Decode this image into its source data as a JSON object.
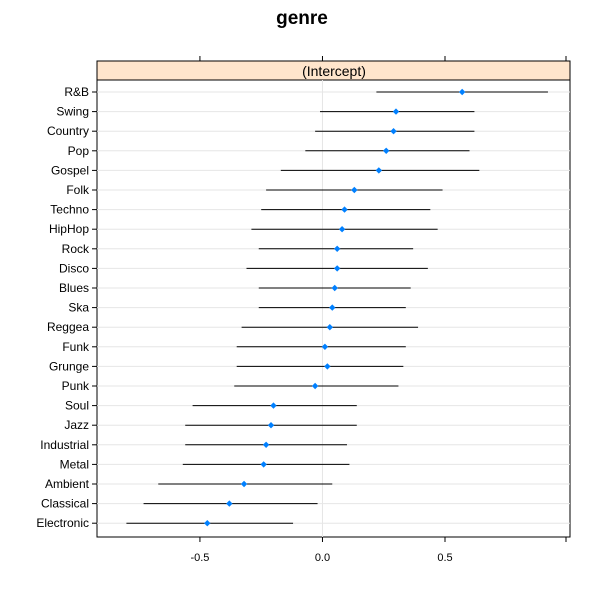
{
  "chart_data": {
    "type": "dotplot-errorbar",
    "title": "genre",
    "panel_label": "(Intercept)",
    "xlim": [
      -0.92,
      1.01
    ],
    "xticks": [
      -0.5,
      0.0,
      0.5
    ],
    "xtick_labels": [
      "-0.5",
      "0.0",
      "0.5"
    ],
    "grid": true,
    "colors": {
      "point": "#0080ff",
      "errorbar": "#000000",
      "strip": "#ffe5cc",
      "grid": "#e6e6e6"
    },
    "categories": [
      "R&B",
      "Swing",
      "Country",
      "Pop",
      "Gospel",
      "Folk",
      "Techno",
      "HipHop",
      "Rock",
      "Disco",
      "Blues",
      "Ska",
      "Reggea",
      "Funk",
      "Grunge",
      "Punk",
      "Soul",
      "Jazz",
      "Industrial",
      "Metal",
      "Ambient",
      "Classical",
      "Electronic"
    ],
    "values": [
      0.57,
      0.3,
      0.29,
      0.26,
      0.23,
      0.13,
      0.09,
      0.08,
      0.06,
      0.06,
      0.05,
      0.04,
      0.03,
      0.01,
      0.02,
      -0.03,
      -0.2,
      -0.21,
      -0.23,
      -0.24,
      -0.32,
      -0.38,
      -0.47
    ],
    "lower": [
      0.22,
      -0.01,
      -0.03,
      -0.07,
      -0.17,
      -0.23,
      -0.25,
      -0.29,
      -0.26,
      -0.31,
      -0.26,
      -0.26,
      -0.33,
      -0.35,
      -0.35,
      -0.36,
      -0.53,
      -0.56,
      -0.56,
      -0.57,
      -0.67,
      -0.73,
      -0.8
    ],
    "upper": [
      0.92,
      0.62,
      0.62,
      0.6,
      0.64,
      0.49,
      0.44,
      0.47,
      0.37,
      0.43,
      0.36,
      0.34,
      0.39,
      0.34,
      0.33,
      0.31,
      0.14,
      0.14,
      0.1,
      0.11,
      0.04,
      -0.02,
      -0.12
    ]
  }
}
